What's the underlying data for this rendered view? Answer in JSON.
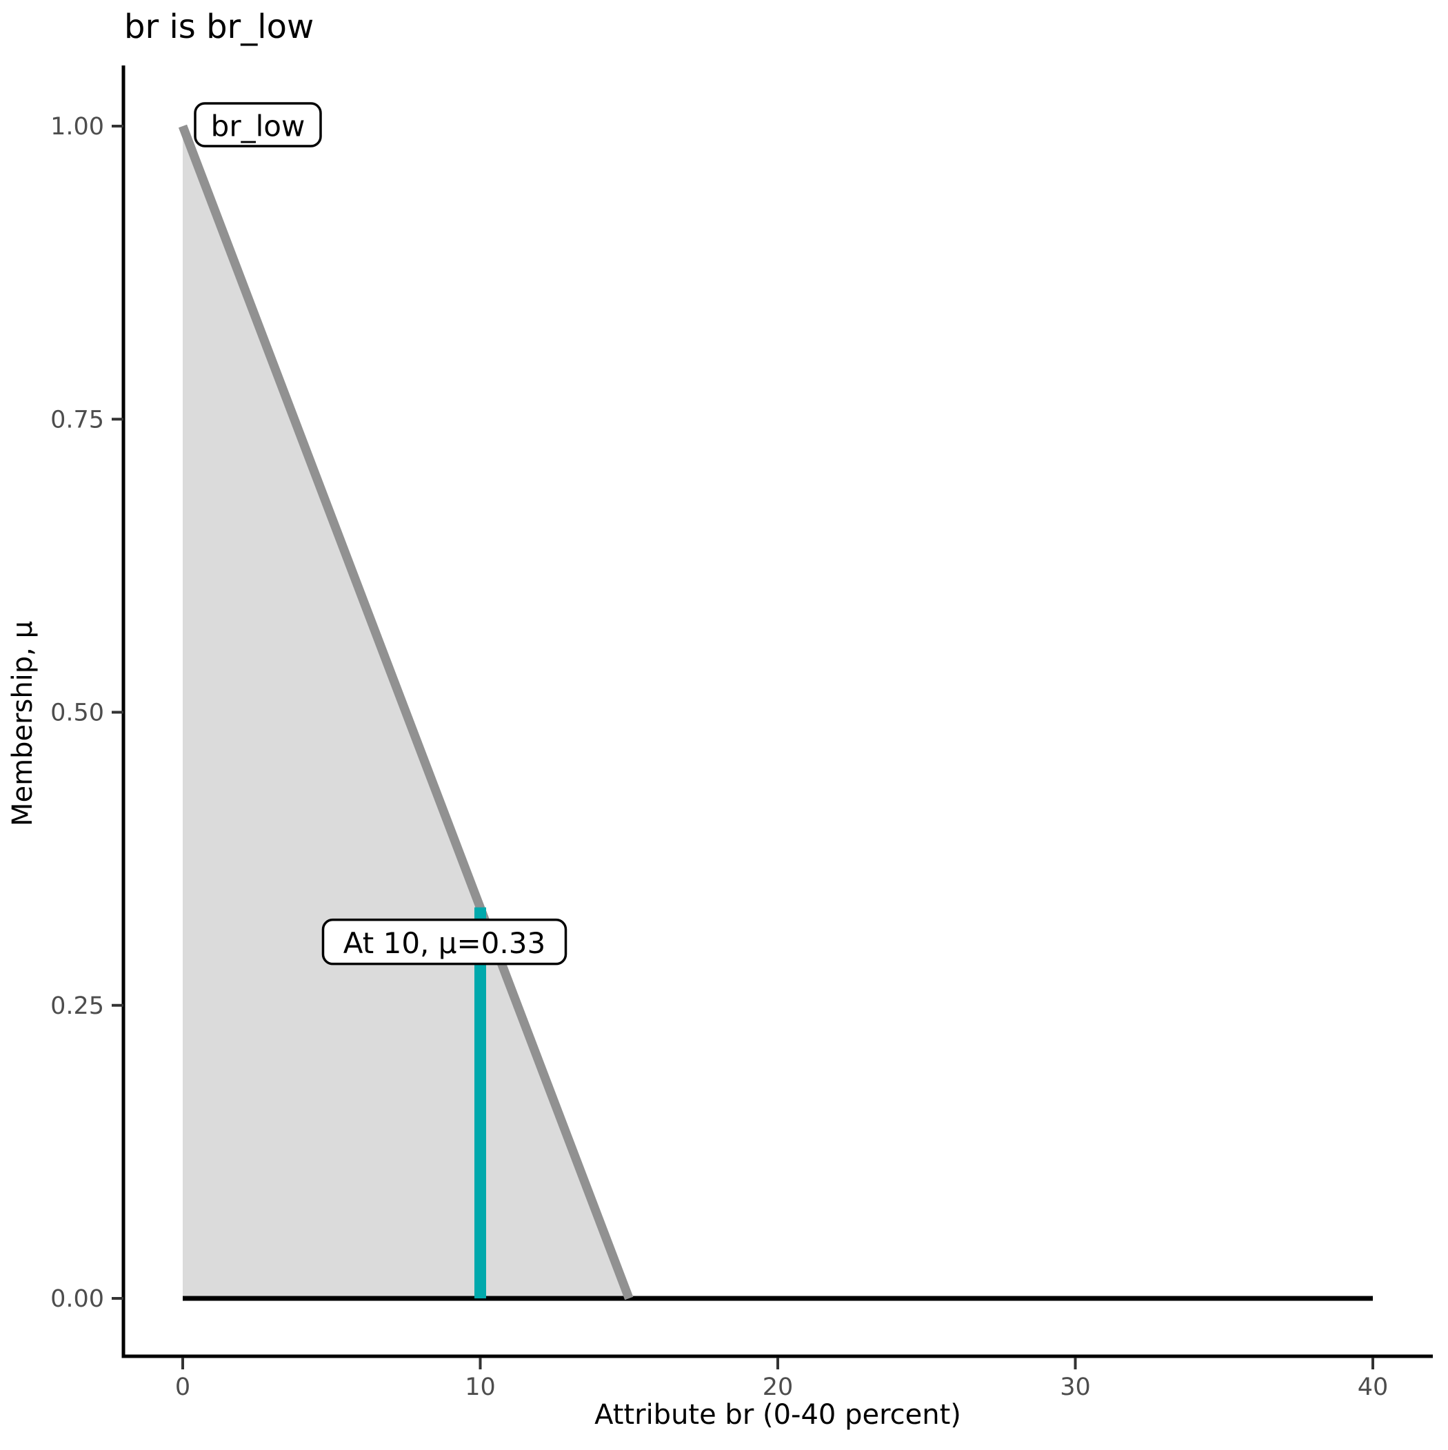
{
  "chart_data": {
    "type": "area",
    "title": "br is br_low",
    "xlabel": "Attribute br (0-40 percent)",
    "ylabel": "Membership, μ",
    "xlim": [
      0,
      40
    ],
    "ylim": [
      0,
      1
    ],
    "x_ticks": [
      0,
      10,
      20,
      30,
      40
    ],
    "x_tick_labels": [
      "0",
      "10",
      "20",
      "30",
      "40"
    ],
    "y_ticks": [
      0,
      0.25,
      0.5,
      0.75,
      1.0
    ],
    "y_tick_labels": [
      "0.00",
      "0.25",
      "0.50",
      "0.75",
      "1.00"
    ],
    "grid": false,
    "legend": false,
    "series": [
      {
        "name": "br_low membership function",
        "points": [
          [
            0,
            1
          ],
          [
            15,
            0
          ]
        ],
        "color": "#919191",
        "fill": "#dbdbdb"
      },
      {
        "name": "zero membership baseline",
        "points": [
          [
            0,
            0
          ],
          [
            40,
            0
          ]
        ],
        "color": "#000000"
      }
    ],
    "marker": {
      "x": 10,
      "mu": 0.33,
      "color": "#00a9ac"
    },
    "annotations": [
      {
        "text": "br_low",
        "anchor_x": 0,
        "anchor_y": 1.0
      },
      {
        "text": "At 10, μ=0.33",
        "anchor_x": 10,
        "anchor_y": 0.33
      }
    ],
    "colors": {
      "axis_line": "#000000",
      "tick_mark": "#333333",
      "tick_label": "#4d4d4d",
      "membership_line": "#919191",
      "membership_fill": "#dbdbdb",
      "marker_line": "#00a9ac",
      "annotation_border": "#000000",
      "annotation_bg": "#ffffff"
    }
  }
}
